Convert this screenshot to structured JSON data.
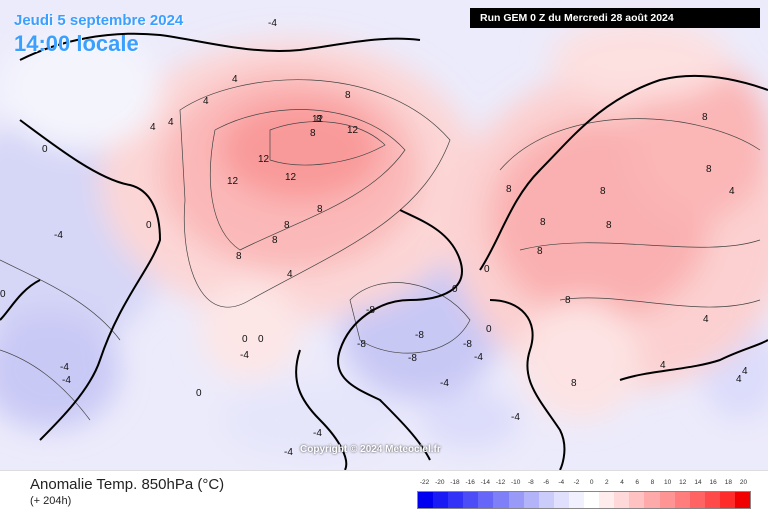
{
  "header": {
    "date": "Jeudi 5 septembre 2024",
    "time": "14:00 locale",
    "run": "Run GEM 0 Z du Mercredi 28 août 2024"
  },
  "watermark": "Copyright © 2024 Meteociel.fr",
  "footer": {
    "title": "Anomalie Temp. 850hPa (°C)",
    "lead": "(+ 204h)"
  },
  "legend": {
    "labels": [
      "-22",
      "-20",
      "-18",
      "-16",
      "-14",
      "-12",
      "-10",
      "-8",
      "-6",
      "-4",
      "-2",
      "0",
      "2",
      "4",
      "6",
      "8",
      "10",
      "12",
      "14",
      "16",
      "18",
      "20"
    ],
    "colors": [
      "#0000f0",
      "#1a1af5",
      "#3333f8",
      "#4d4df8",
      "#6666f8",
      "#7f7ff8",
      "#9999f8",
      "#b3b3fa",
      "#ccccfb",
      "#e0e0fd",
      "#f0f0ff",
      "#ffffff",
      "#ffecec",
      "#ffd9d9",
      "#ffc2c2",
      "#ffaaaa",
      "#ff9494",
      "#ff7d7d",
      "#ff6363",
      "#ff4a4a",
      "#ff2c2c",
      "#f00000"
    ]
  },
  "map_labels": [
    "-4",
    "4",
    "4",
    "4",
    "4",
    "8",
    "8",
    "12",
    "8",
    "12",
    "12",
    "12",
    "12",
    "8",
    "8",
    "8",
    "8",
    "4",
    "0",
    "-4",
    "0",
    "0",
    "0",
    "0",
    "-4",
    "-8",
    "-8",
    "-8",
    "-8",
    "-8",
    "-4",
    "0",
    "0",
    "0",
    "8",
    "8",
    "8",
    "8",
    "8",
    "8",
    "8",
    "4",
    "4",
    "8",
    "4",
    "8",
    "-4",
    "-4",
    "0",
    "-4",
    "-4",
    "4",
    "4",
    "-4",
    "-4"
  ]
}
